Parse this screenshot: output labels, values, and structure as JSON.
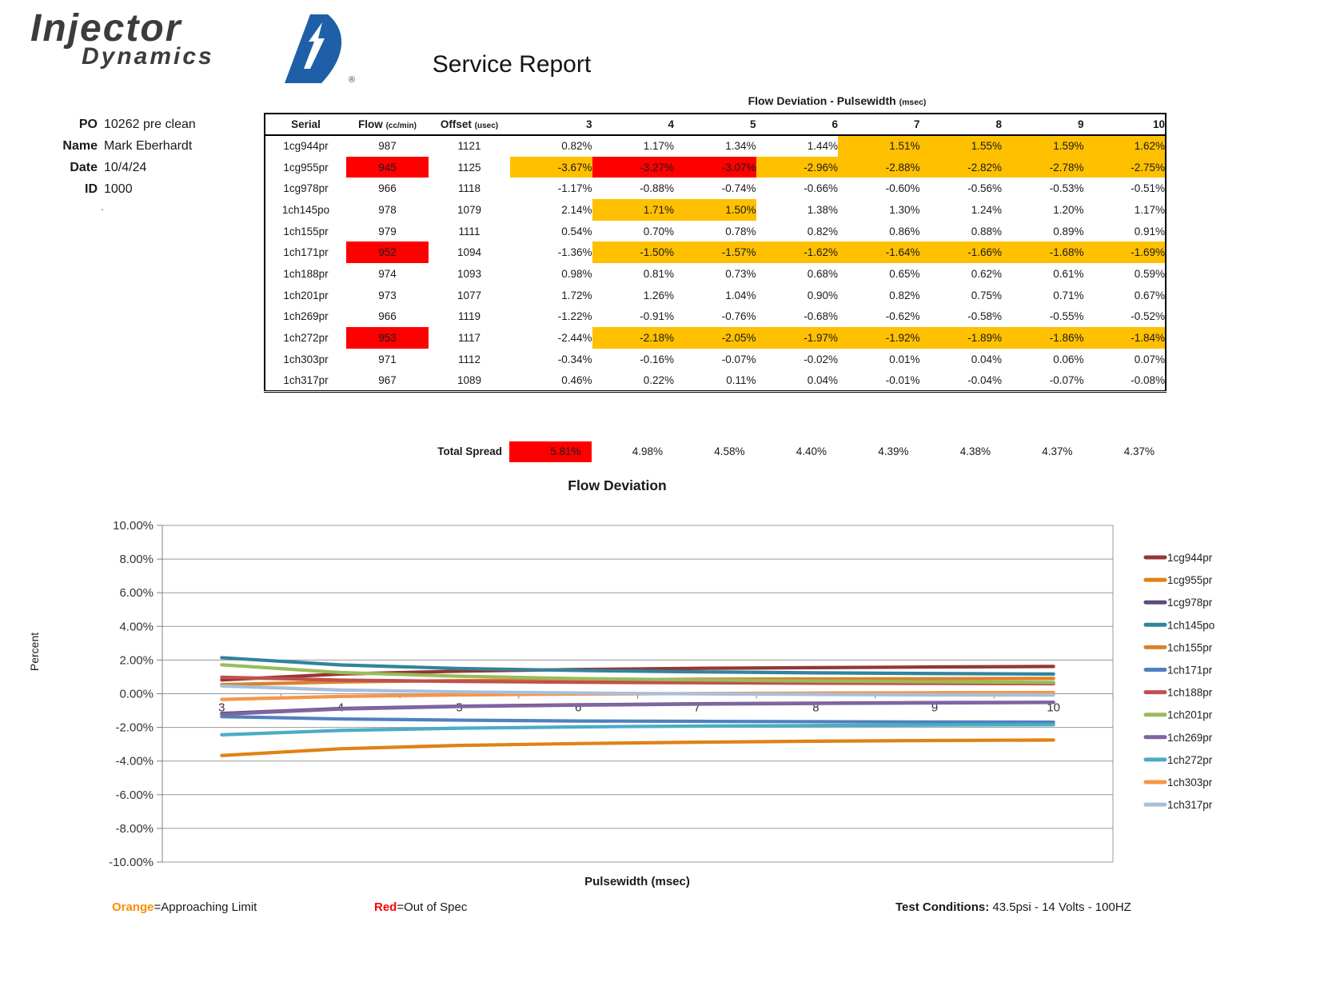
{
  "report": {
    "logo_line1": "Injector",
    "logo_line2": "Dynamics",
    "logo_registered": "®",
    "title": "Service Report",
    "info": [
      {
        "label": "PO",
        "value": "10262 pre clean"
      },
      {
        "label": "Name",
        "value": "Mark Eberhardt"
      },
      {
        "label": "Date",
        "value": "10/4/24"
      },
      {
        "label": "ID",
        "value": "1000"
      }
    ],
    "stray_dot": "."
  },
  "table": {
    "group_header": "Flow Deviation - Pulsewidth",
    "group_header_unit": "(msec)",
    "columns": {
      "serial": "Serial",
      "flow": "Flow",
      "flow_unit": "(cc/min)",
      "offset": "Offset",
      "offset_unit": "(usec)",
      "pulsewidths": [
        "3",
        "4",
        "5",
        "6",
        "7",
        "8",
        "9",
        "10"
      ]
    },
    "highlight_colors": {
      "orange": "#FFC000",
      "red": "#FF0000"
    },
    "rows": [
      {
        "serial": "1cg944pr",
        "flow": "987",
        "flow_status": "n",
        "offset": "1121",
        "values": [
          "0.82%",
          "1.17%",
          "1.34%",
          "1.44%",
          "1.51%",
          "1.55%",
          "1.59%",
          "1.62%"
        ],
        "statuses": [
          "n",
          "n",
          "n",
          "n",
          "o",
          "o",
          "o",
          "o"
        ]
      },
      {
        "serial": "1cg955pr",
        "flow": "945",
        "flow_status": "r",
        "offset": "1125",
        "values": [
          "-3.67%",
          "-3.27%",
          "-3.07%",
          "-2.96%",
          "-2.88%",
          "-2.82%",
          "-2.78%",
          "-2.75%"
        ],
        "statuses": [
          "o",
          "r",
          "r",
          "o",
          "o",
          "o",
          "o",
          "o"
        ]
      },
      {
        "serial": "1cg978pr",
        "flow": "966",
        "flow_status": "n",
        "offset": "1118",
        "values": [
          "-1.17%",
          "-0.88%",
          "-0.74%",
          "-0.66%",
          "-0.60%",
          "-0.56%",
          "-0.53%",
          "-0.51%"
        ],
        "statuses": [
          "n",
          "n",
          "n",
          "n",
          "n",
          "n",
          "n",
          "n"
        ]
      },
      {
        "serial": "1ch145po",
        "flow": "978",
        "flow_status": "n",
        "offset": "1079",
        "values": [
          "2.14%",
          "1.71%",
          "1.50%",
          "1.38%",
          "1.30%",
          "1.24%",
          "1.20%",
          "1.17%"
        ],
        "statuses": [
          "n",
          "o",
          "o",
          "n",
          "n",
          "n",
          "n",
          "n"
        ]
      },
      {
        "serial": "1ch155pr",
        "flow": "979",
        "flow_status": "n",
        "offset": "1111",
        "values": [
          "0.54%",
          "0.70%",
          "0.78%",
          "0.82%",
          "0.86%",
          "0.88%",
          "0.89%",
          "0.91%"
        ],
        "statuses": [
          "n",
          "n",
          "n",
          "n",
          "n",
          "n",
          "n",
          "n"
        ]
      },
      {
        "serial": "1ch171pr",
        "flow": "952",
        "flow_status": "r",
        "offset": "1094",
        "values": [
          "-1.36%",
          "-1.50%",
          "-1.57%",
          "-1.62%",
          "-1.64%",
          "-1.66%",
          "-1.68%",
          "-1.69%"
        ],
        "statuses": [
          "n",
          "o",
          "o",
          "o",
          "o",
          "o",
          "o",
          "o"
        ]
      },
      {
        "serial": "1ch188pr",
        "flow": "974",
        "flow_status": "n",
        "offset": "1093",
        "values": [
          "0.98%",
          "0.81%",
          "0.73%",
          "0.68%",
          "0.65%",
          "0.62%",
          "0.61%",
          "0.59%"
        ],
        "statuses": [
          "n",
          "n",
          "n",
          "n",
          "n",
          "n",
          "n",
          "n"
        ]
      },
      {
        "serial": "1ch201pr",
        "flow": "973",
        "flow_status": "n",
        "offset": "1077",
        "values": [
          "1.72%",
          "1.26%",
          "1.04%",
          "0.90%",
          "0.82%",
          "0.75%",
          "0.71%",
          "0.67%"
        ],
        "statuses": [
          "n",
          "n",
          "n",
          "n",
          "n",
          "n",
          "n",
          "n"
        ]
      },
      {
        "serial": "1ch269pr",
        "flow": "966",
        "flow_status": "n",
        "offset": "1119",
        "values": [
          "-1.22%",
          "-0.91%",
          "-0.76%",
          "-0.68%",
          "-0.62%",
          "-0.58%",
          "-0.55%",
          "-0.52%"
        ],
        "statuses": [
          "n",
          "n",
          "n",
          "n",
          "n",
          "n",
          "n",
          "n"
        ]
      },
      {
        "serial": "1ch272pr",
        "flow": "953",
        "flow_status": "r",
        "offset": "1117",
        "values": [
          "-2.44%",
          "-2.18%",
          "-2.05%",
          "-1.97%",
          "-1.92%",
          "-1.89%",
          "-1.86%",
          "-1.84%"
        ],
        "statuses": [
          "n",
          "o",
          "o",
          "o",
          "o",
          "o",
          "o",
          "o"
        ]
      },
      {
        "serial": "1ch303pr",
        "flow": "971",
        "flow_status": "n",
        "offset": "1112",
        "values": [
          "-0.34%",
          "-0.16%",
          "-0.07%",
          "-0.02%",
          "0.01%",
          "0.04%",
          "0.06%",
          "0.07%"
        ],
        "statuses": [
          "n",
          "n",
          "n",
          "n",
          "n",
          "n",
          "n",
          "n"
        ]
      },
      {
        "serial": "1ch317pr",
        "flow": "967",
        "flow_status": "n",
        "offset": "1089",
        "values": [
          "0.46%",
          "0.22%",
          "0.11%",
          "0.04%",
          "-0.01%",
          "-0.04%",
          "-0.07%",
          "-0.08%"
        ],
        "statuses": [
          "n",
          "n",
          "n",
          "n",
          "n",
          "n",
          "n",
          "n"
        ]
      }
    ],
    "total_spread": {
      "label": "Total Spread",
      "values": [
        "5.81%",
        "4.98%",
        "4.58%",
        "4.40%",
        "4.39%",
        "4.38%",
        "4.37%",
        "4.37%"
      ],
      "statuses": [
        "r",
        "n",
        "n",
        "n",
        "n",
        "n",
        "n",
        "n"
      ]
    }
  },
  "chart_data": {
    "type": "line",
    "title": "Flow Deviation",
    "xlabel": "Pulsewidth (msec)",
    "ylabel": "Percent",
    "x": [
      3,
      4,
      5,
      6,
      7,
      8,
      9,
      10
    ],
    "ylim": [
      -10,
      10
    ],
    "ytick_step": 2,
    "ytick_suffix": "%",
    "grid": true,
    "legend_position": "right",
    "series": [
      {
        "name": "1cg944pr",
        "color": "#943735",
        "values": [
          0.82,
          1.17,
          1.34,
          1.44,
          1.51,
          1.55,
          1.59,
          1.62
        ]
      },
      {
        "name": "1cg955pr",
        "color": "#E08214",
        "values": [
          -3.67,
          -3.27,
          -3.07,
          -2.96,
          -2.88,
          -2.82,
          -2.78,
          -2.75
        ]
      },
      {
        "name": "1cg978pr",
        "color": "#604A7B",
        "values": [
          -1.17,
          -0.88,
          -0.74,
          -0.66,
          -0.6,
          -0.56,
          -0.53,
          -0.51
        ]
      },
      {
        "name": "1ch145po",
        "color": "#31849B",
        "values": [
          2.14,
          1.71,
          1.5,
          1.38,
          1.3,
          1.24,
          1.2,
          1.17
        ]
      },
      {
        "name": "1ch155pr",
        "color": "#D9822B",
        "values": [
          0.54,
          0.7,
          0.78,
          0.82,
          0.86,
          0.88,
          0.89,
          0.91
        ]
      },
      {
        "name": "1ch171pr",
        "color": "#4F81BD",
        "values": [
          -1.36,
          -1.5,
          -1.57,
          -1.62,
          -1.64,
          -1.66,
          -1.68,
          -1.69
        ]
      },
      {
        "name": "1ch188pr",
        "color": "#C0504D",
        "values": [
          0.98,
          0.81,
          0.73,
          0.68,
          0.65,
          0.62,
          0.61,
          0.59
        ]
      },
      {
        "name": "1ch201pr",
        "color": "#9BBB59",
        "values": [
          1.72,
          1.26,
          1.04,
          0.9,
          0.82,
          0.75,
          0.71,
          0.67
        ]
      },
      {
        "name": "1ch269pr",
        "color": "#8064A2",
        "values": [
          -1.22,
          -0.91,
          -0.76,
          -0.68,
          -0.62,
          -0.58,
          -0.55,
          -0.52
        ]
      },
      {
        "name": "1ch272pr",
        "color": "#4BACC6",
        "values": [
          -2.44,
          -2.18,
          -2.05,
          -1.97,
          -1.92,
          -1.89,
          -1.86,
          -1.84
        ]
      },
      {
        "name": "1ch303pr",
        "color": "#F79646",
        "values": [
          -0.34,
          -0.16,
          -0.07,
          -0.02,
          0.01,
          0.04,
          0.06,
          0.07
        ]
      },
      {
        "name": "1ch317pr",
        "color": "#A8BFDB",
        "values": [
          0.46,
          0.22,
          0.11,
          0.04,
          -0.01,
          -0.04,
          -0.07,
          -0.08
        ]
      }
    ]
  },
  "footer": {
    "orange_key_word": "Orange",
    "orange_key_rest": "=Approaching Limit",
    "orange_color": "#FF8C00",
    "red_key_word": "Red",
    "red_key_rest": "=Out of Spec",
    "red_color": "#FF0000",
    "test_conditions_label": "Test Conditions:",
    "test_conditions_value": " 43.5psi - 14 Volts - 100HZ"
  }
}
